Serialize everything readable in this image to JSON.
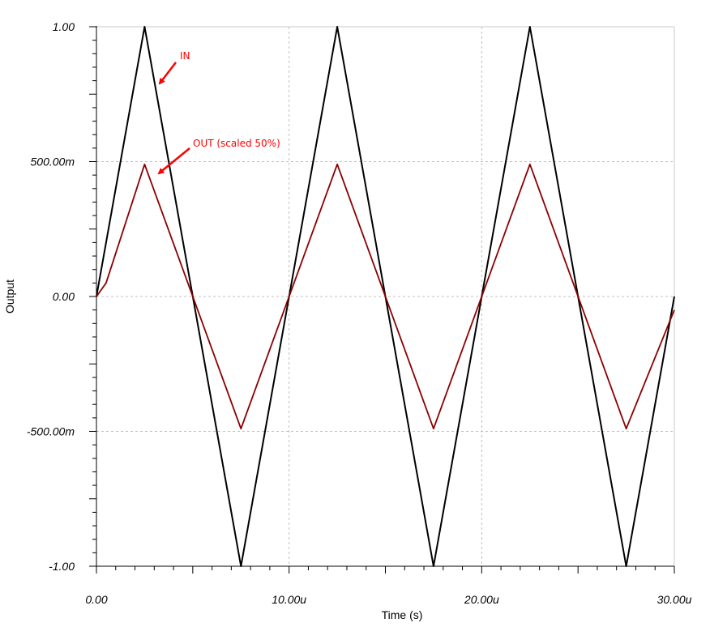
{
  "chart_data": {
    "type": "line",
    "xlabel": "Time (s)",
    "ylabel": "Output",
    "xlim": [
      0,
      30
    ],
    "ylim": [
      -1,
      1
    ],
    "x_unit": "u",
    "x_ticks": [
      {
        "value": 0,
        "label": "0.00"
      },
      {
        "value": 10,
        "label": "10.00u"
      },
      {
        "value": 20,
        "label": "20.00u"
      },
      {
        "value": 30,
        "label": "30.00u"
      }
    ],
    "y_ticks": [
      {
        "value": 1,
        "label": "1.00"
      },
      {
        "value": 0.5,
        "label": "500.00m"
      },
      {
        "value": 0,
        "label": "0.00"
      },
      {
        "value": -0.5,
        "label": "-500.00m"
      },
      {
        "value": -1,
        "label": "-1.00"
      }
    ],
    "grid": true,
    "series": [
      {
        "name": "IN",
        "color": "#000000",
        "x": [
          0,
          2.5,
          7.5,
          12.5,
          17.5,
          22.5,
          27.5,
          30
        ],
        "y": [
          0,
          1,
          -1,
          1,
          -1,
          1,
          -1,
          0
        ]
      },
      {
        "name": "OUT (scaled 50%)",
        "color": "#8b0000",
        "x": [
          0,
          0.5,
          2.5,
          7.5,
          12.5,
          17.5,
          22.5,
          27.5,
          30
        ],
        "y": [
          0,
          0.05,
          0.49,
          -0.49,
          0.49,
          -0.49,
          0.49,
          -0.49,
          -0.05
        ]
      }
    ],
    "annotations": [
      {
        "text": "IN",
        "color": "#ff0000",
        "target_series": 0
      },
      {
        "text": "OUT (scaled 50%)",
        "color": "#ff0000",
        "target_series": 1
      }
    ]
  }
}
